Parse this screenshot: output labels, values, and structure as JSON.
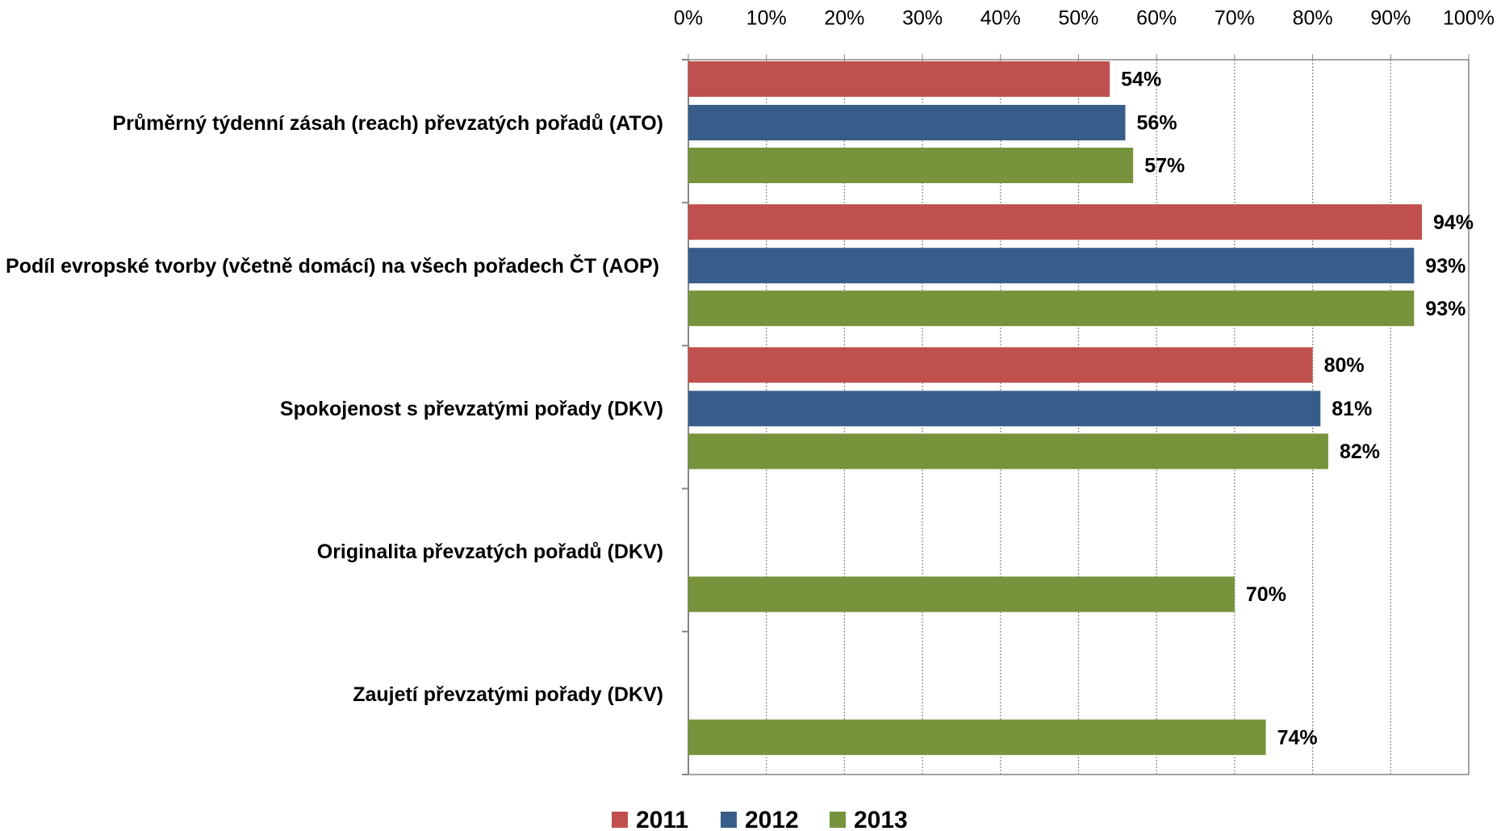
{
  "chart_data": {
    "type": "bar",
    "orientation": "horizontal",
    "categories": [
      "Průměrný týdenní zásah (reach) převzatých pořadů (ATO)",
      "Podíl evropské tvorby (včetně domácí) na všech pořadech ČT (AOP)",
      "Spokojenost s převzatými pořady (DKV)",
      "Originalita převzatých pořadů (DKV)",
      "Zaujetí převzatými pořady (DKV)"
    ],
    "series": [
      {
        "name": "2011",
        "color": "#c0504d",
        "values": [
          54,
          94,
          80,
          null,
          null
        ],
        "value_labels": [
          "54%",
          "94%",
          "80%",
          null,
          null
        ]
      },
      {
        "name": "2012",
        "color": "#385d8a",
        "values": [
          56,
          93,
          81,
          null,
          null
        ],
        "value_labels": [
          "56%",
          "93%",
          "81%",
          null,
          null
        ]
      },
      {
        "name": "2013",
        "color": "#77933c",
        "values": [
          57,
          93,
          82,
          70,
          74
        ],
        "value_labels": [
          "57%",
          "93%",
          "82%",
          "70%",
          "74%"
        ]
      }
    ],
    "xlim": [
      0,
      100
    ],
    "xticks": [
      {
        "value": 0,
        "label": "0%"
      },
      {
        "value": 10,
        "label": "10%"
      },
      {
        "value": 20,
        "label": "20%"
      },
      {
        "value": 30,
        "label": "30%"
      },
      {
        "value": 40,
        "label": "40%"
      },
      {
        "value": 50,
        "label": "50%"
      },
      {
        "value": 60,
        "label": "60%"
      },
      {
        "value": 70,
        "label": "70%"
      },
      {
        "value": 80,
        "label": "80%"
      },
      {
        "value": 90,
        "label": "90%"
      },
      {
        "value": 100,
        "label": "100%"
      }
    ],
    "grid": true,
    "legend": "bottom"
  }
}
